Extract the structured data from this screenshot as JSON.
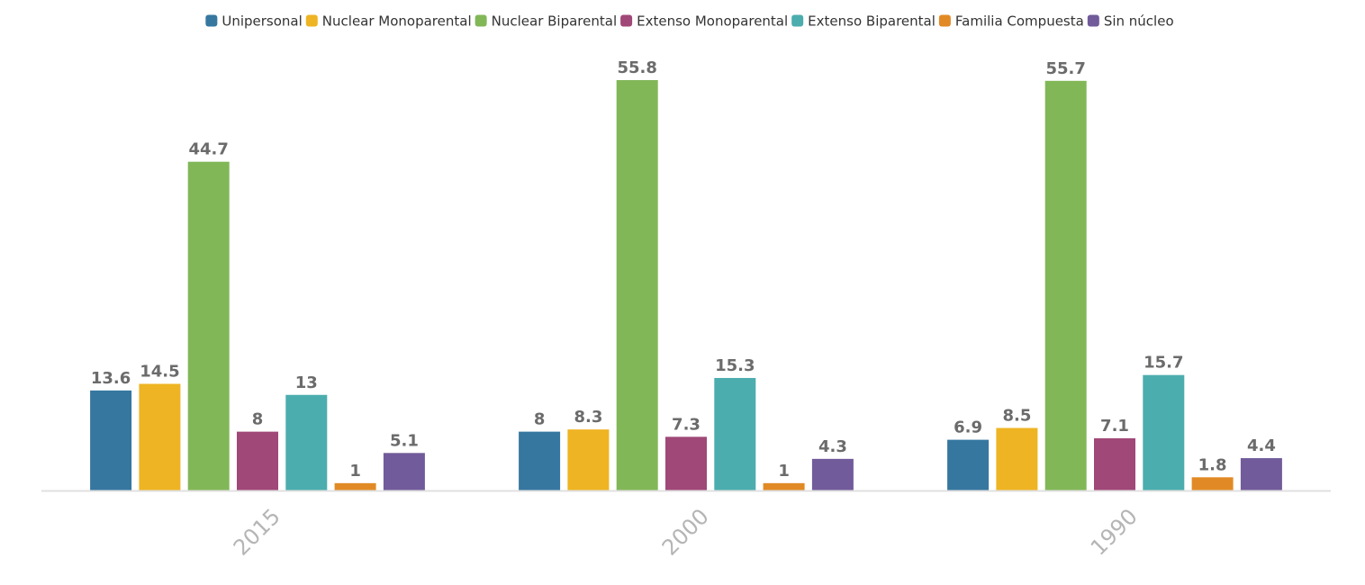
{
  "chart_data": {
    "type": "bar",
    "categories": [
      "2015",
      "2000",
      "1990"
    ],
    "series": [
      {
        "name": "Unipersonal",
        "color": "#3677a0",
        "values": [
          13.6,
          8,
          6.9
        ]
      },
      {
        "name": "Nuclear Monoparental",
        "color": "#eeb423",
        "values": [
          14.5,
          8.3,
          8.5
        ]
      },
      {
        "name": "Nuclear Biparental",
        "color": "#82b758",
        "values": [
          44.7,
          55.8,
          55.7
        ]
      },
      {
        "name": "Extenso Monoparental",
        "color": "#a04878",
        "values": [
          8,
          7.3,
          7.1
        ]
      },
      {
        "name": "Extenso Biparental",
        "color": "#4cadae",
        "values": [
          13,
          15.3,
          15.7
        ]
      },
      {
        "name": "Familia Compuesta",
        "color": "#e18a25",
        "values": [
          1,
          1,
          1.8
        ]
      },
      {
        "name": "Sin núcleo",
        "color": "#715b9b",
        "values": [
          5.1,
          4.3,
          4.4
        ]
      }
    ],
    "title": "",
    "xlabel": "",
    "ylabel": "",
    "ylim": [
      0,
      55.8
    ],
    "grid": false,
    "legend_position": "top",
    "data_labels": true,
    "x_tick_rotation": "-45"
  },
  "colors": {
    "axis_line": "#e0e0e0",
    "tick_label": "#b5b5b5",
    "data_label": "#6b6b6b"
  }
}
